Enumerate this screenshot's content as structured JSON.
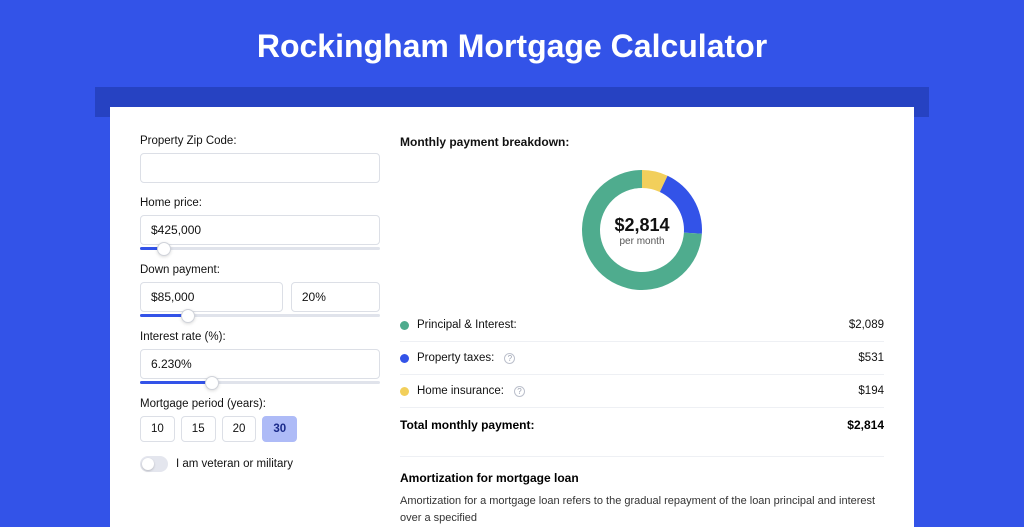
{
  "page": {
    "title": "Rockingham Mortgage Calculator",
    "bg_color": "#3353e8",
    "shadow_color": "#2642c2",
    "card_bg": "#ffffff"
  },
  "form": {
    "zip": {
      "label": "Property Zip Code:",
      "value": ""
    },
    "home_price": {
      "label": "Home price:",
      "value": "$425,000",
      "slider_pct": 10
    },
    "down_payment": {
      "label": "Down payment:",
      "amount": "$85,000",
      "percent": "20%",
      "slider_pct": 20
    },
    "interest_rate": {
      "label": "Interest rate (%):",
      "value": "6.230%",
      "slider_pct": 30
    },
    "period": {
      "label": "Mortgage period (years):",
      "options": [
        "10",
        "15",
        "20",
        "30"
      ],
      "selected": "30"
    },
    "veteran": {
      "label": "I am veteran or military",
      "checked": false
    }
  },
  "breakdown": {
    "title": "Monthly payment breakdown:",
    "center_amount": "$2,814",
    "center_sub": "per month",
    "donut": {
      "items": [
        {
          "key": "principal_interest",
          "label": "Principal & Interest:",
          "value": "$2,089",
          "color": "#4fac8e",
          "pct": 74,
          "has_info": false
        },
        {
          "key": "property_taxes",
          "label": "Property taxes:",
          "value": "$531",
          "color": "#3353e8",
          "pct": 19,
          "has_info": true
        },
        {
          "key": "home_insurance",
          "label": "Home insurance:",
          "value": "$194",
          "color": "#f2cf5b",
          "pct": 7,
          "has_info": true
        }
      ],
      "radius_outer": 60,
      "radius_inner": 42
    },
    "total": {
      "label": "Total monthly payment:",
      "value": "$2,814"
    }
  },
  "amortization": {
    "title": "Amortization for mortgage loan",
    "text": "Amortization for a mortgage loan refers to the gradual repayment of the loan principal and interest over a specified"
  }
}
